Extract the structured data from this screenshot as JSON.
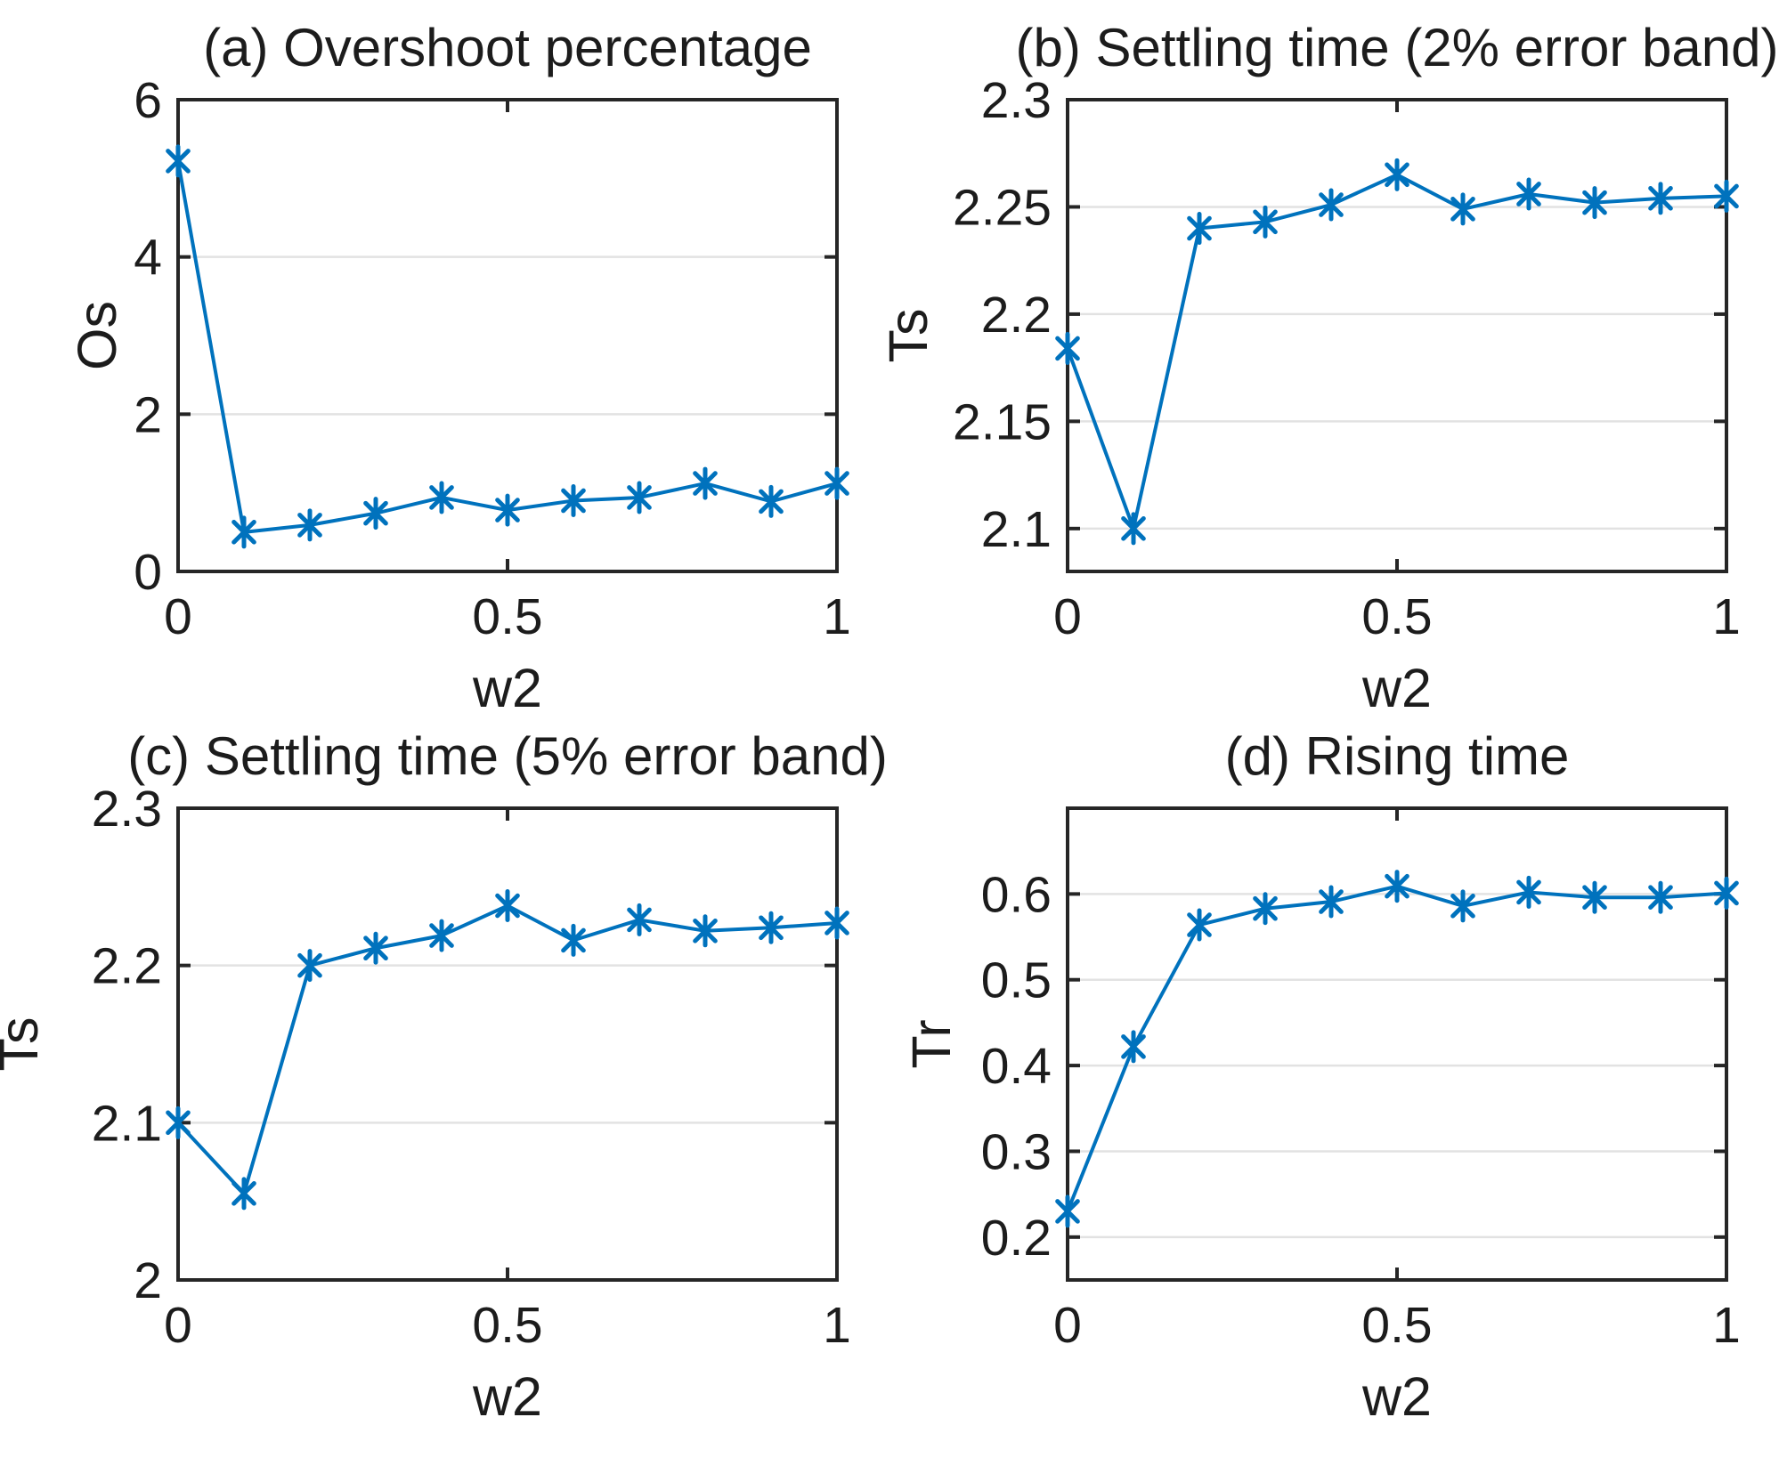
{
  "style": {
    "background": "#ffffff",
    "accent": "#0072BD",
    "axis_color": "#262626",
    "grid_color": "#e2e2e2",
    "text_color": "#1c1c1c"
  },
  "chart_data": [
    {
      "panel": "a",
      "type": "line",
      "title": "(a) Overshoot percentage",
      "xlabel": "w2",
      "ylabel": "Os",
      "x": [
        0,
        0.1,
        0.2,
        0.3,
        0.4,
        0.5,
        0.6,
        0.7,
        0.8,
        0.9,
        1.0
      ],
      "y": [
        5.22,
        0.5,
        0.59,
        0.74,
        0.94,
        0.78,
        0.9,
        0.94,
        1.12,
        0.89,
        1.12
      ],
      "xlim": [
        0,
        1
      ],
      "ylim": [
        0,
        6
      ],
      "xticks": [
        0,
        0.5,
        1
      ],
      "xtick_labels": [
        "0",
        "0.5",
        "1"
      ],
      "yticks": [
        0,
        2,
        4,
        6
      ],
      "ytick_labels": [
        "0",
        "2",
        "4",
        "6"
      ],
      "grid": "horizontal",
      "legend": "none",
      "marker": "asterisk",
      "line_color": "#0072BD"
    },
    {
      "panel": "b",
      "type": "line",
      "title": "(b) Settling time (2% error band)",
      "xlabel": "w2",
      "ylabel": "Ts",
      "x": [
        0,
        0.1,
        0.2,
        0.3,
        0.4,
        0.5,
        0.6,
        0.7,
        0.8,
        0.9,
        1.0
      ],
      "y": [
        2.184,
        2.1,
        2.24,
        2.243,
        2.251,
        2.265,
        2.249,
        2.256,
        2.252,
        2.254,
        2.255
      ],
      "xlim": [
        0,
        1
      ],
      "ylim": [
        2.08,
        2.3
      ],
      "xticks": [
        0,
        0.5,
        1
      ],
      "xtick_labels": [
        "0",
        "0.5",
        "1"
      ],
      "yticks": [
        2.1,
        2.15,
        2.2,
        2.25,
        2.3
      ],
      "ytick_labels": [
        "2.1",
        "2.15",
        "2.2",
        "2.25",
        "2.3"
      ],
      "grid": "horizontal",
      "legend": "none",
      "marker": "asterisk",
      "line_color": "#0072BD"
    },
    {
      "panel": "c",
      "type": "line",
      "title": "(c) Settling time (5% error band)",
      "xlabel": "w2",
      "ylabel": "Ts",
      "x": [
        0,
        0.1,
        0.2,
        0.3,
        0.4,
        0.5,
        0.6,
        0.7,
        0.8,
        0.9,
        1.0
      ],
      "y": [
        2.1,
        2.055,
        2.2,
        2.211,
        2.219,
        2.238,
        2.216,
        2.229,
        2.222,
        2.224,
        2.227
      ],
      "xlim": [
        0,
        1
      ],
      "ylim": [
        2.0,
        2.3
      ],
      "xticks": [
        0,
        0.5,
        1
      ],
      "xtick_labels": [
        "0",
        "0.5",
        "1"
      ],
      "yticks": [
        2.0,
        2.1,
        2.2,
        2.3
      ],
      "ytick_labels": [
        "2",
        "2.1",
        "2.2",
        "2.3"
      ],
      "grid": "horizontal",
      "legend": "none",
      "marker": "asterisk",
      "line_color": "#0072BD"
    },
    {
      "panel": "d",
      "type": "line",
      "title": "(d) Rising time",
      "xlabel": "w2",
      "ylabel": "Tr",
      "x": [
        0,
        0.1,
        0.2,
        0.3,
        0.4,
        0.5,
        0.6,
        0.7,
        0.8,
        0.9,
        1.0
      ],
      "y": [
        0.23,
        0.422,
        0.564,
        0.583,
        0.591,
        0.609,
        0.586,
        0.602,
        0.596,
        0.596,
        0.601
      ],
      "xlim": [
        0,
        1
      ],
      "ylim": [
        0.15,
        0.7
      ],
      "xticks": [
        0,
        0.5,
        1
      ],
      "xtick_labels": [
        "0",
        "0.5",
        "1"
      ],
      "yticks": [
        0.2,
        0.3,
        0.4,
        0.5,
        0.6
      ],
      "ytick_labels": [
        "0.2",
        "0.3",
        "0.4",
        "0.5",
        "0.6"
      ],
      "grid": "horizontal",
      "legend": "none",
      "marker": "asterisk",
      "line_color": "#0072BD"
    }
  ]
}
